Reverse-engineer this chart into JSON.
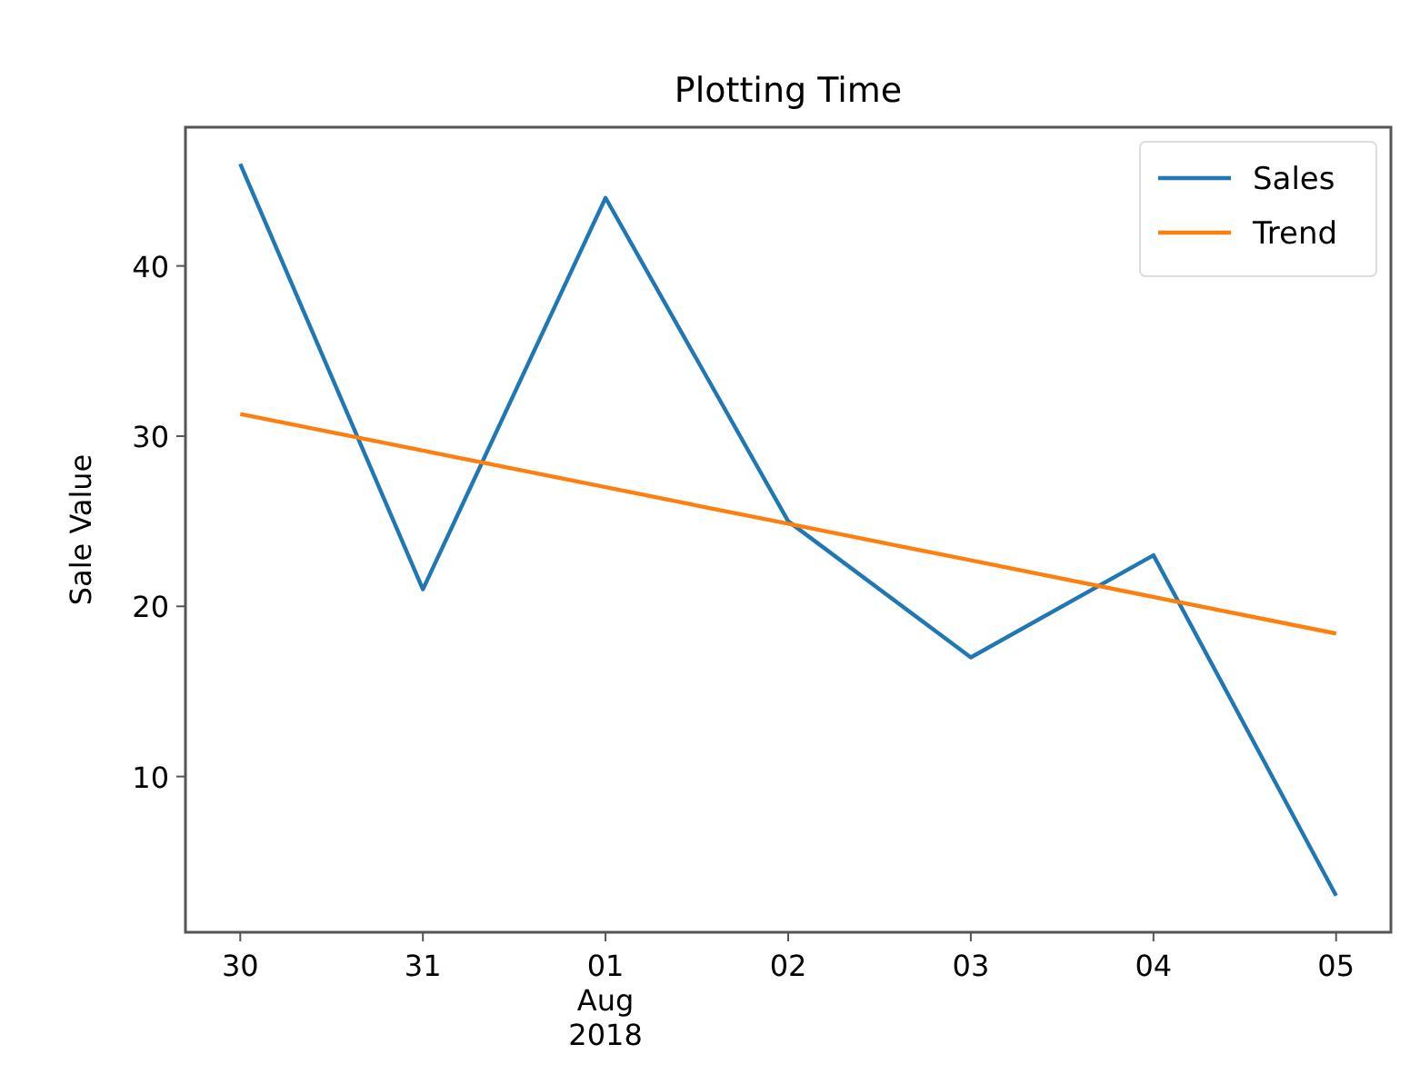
{
  "chart_data": {
    "type": "line",
    "title": "Plotting Time",
    "ylabel": "Sale Value",
    "x": [
      "2018-07-30",
      "2018-07-31",
      "2018-08-01",
      "2018-08-02",
      "2018-08-03",
      "2018-08-04",
      "2018-08-05"
    ],
    "series": [
      {
        "name": "Sales",
        "color": "#1f77b4",
        "values": [
          46,
          21,
          44,
          25,
          17,
          23,
          3
        ]
      },
      {
        "name": "Trend",
        "color": "#ff7f0e",
        "values": [
          31.3,
          29.15,
          27.0,
          24.85,
          22.7,
          20.55,
          18.4
        ]
      }
    ],
    "xlim": [
      "2018-07-29T16:48",
      "2018-08-05T07:12"
    ],
    "xticks": [
      {
        "value": "2018-07-30",
        "label": "30"
      },
      {
        "value": "2018-07-31",
        "label": "31"
      },
      {
        "value": "2018-08-01",
        "label": "01\nAug\n2018"
      },
      {
        "value": "2018-08-02",
        "label": "02"
      },
      {
        "value": "2018-08-03",
        "label": "03"
      },
      {
        "value": "2018-08-04",
        "label": "04"
      },
      {
        "value": "2018-08-05",
        "label": "05"
      }
    ],
    "ylim": [
      0.85,
      48.15
    ],
    "yticks": [
      10,
      20,
      30,
      40
    ],
    "grid": false,
    "legend": "top right"
  }
}
